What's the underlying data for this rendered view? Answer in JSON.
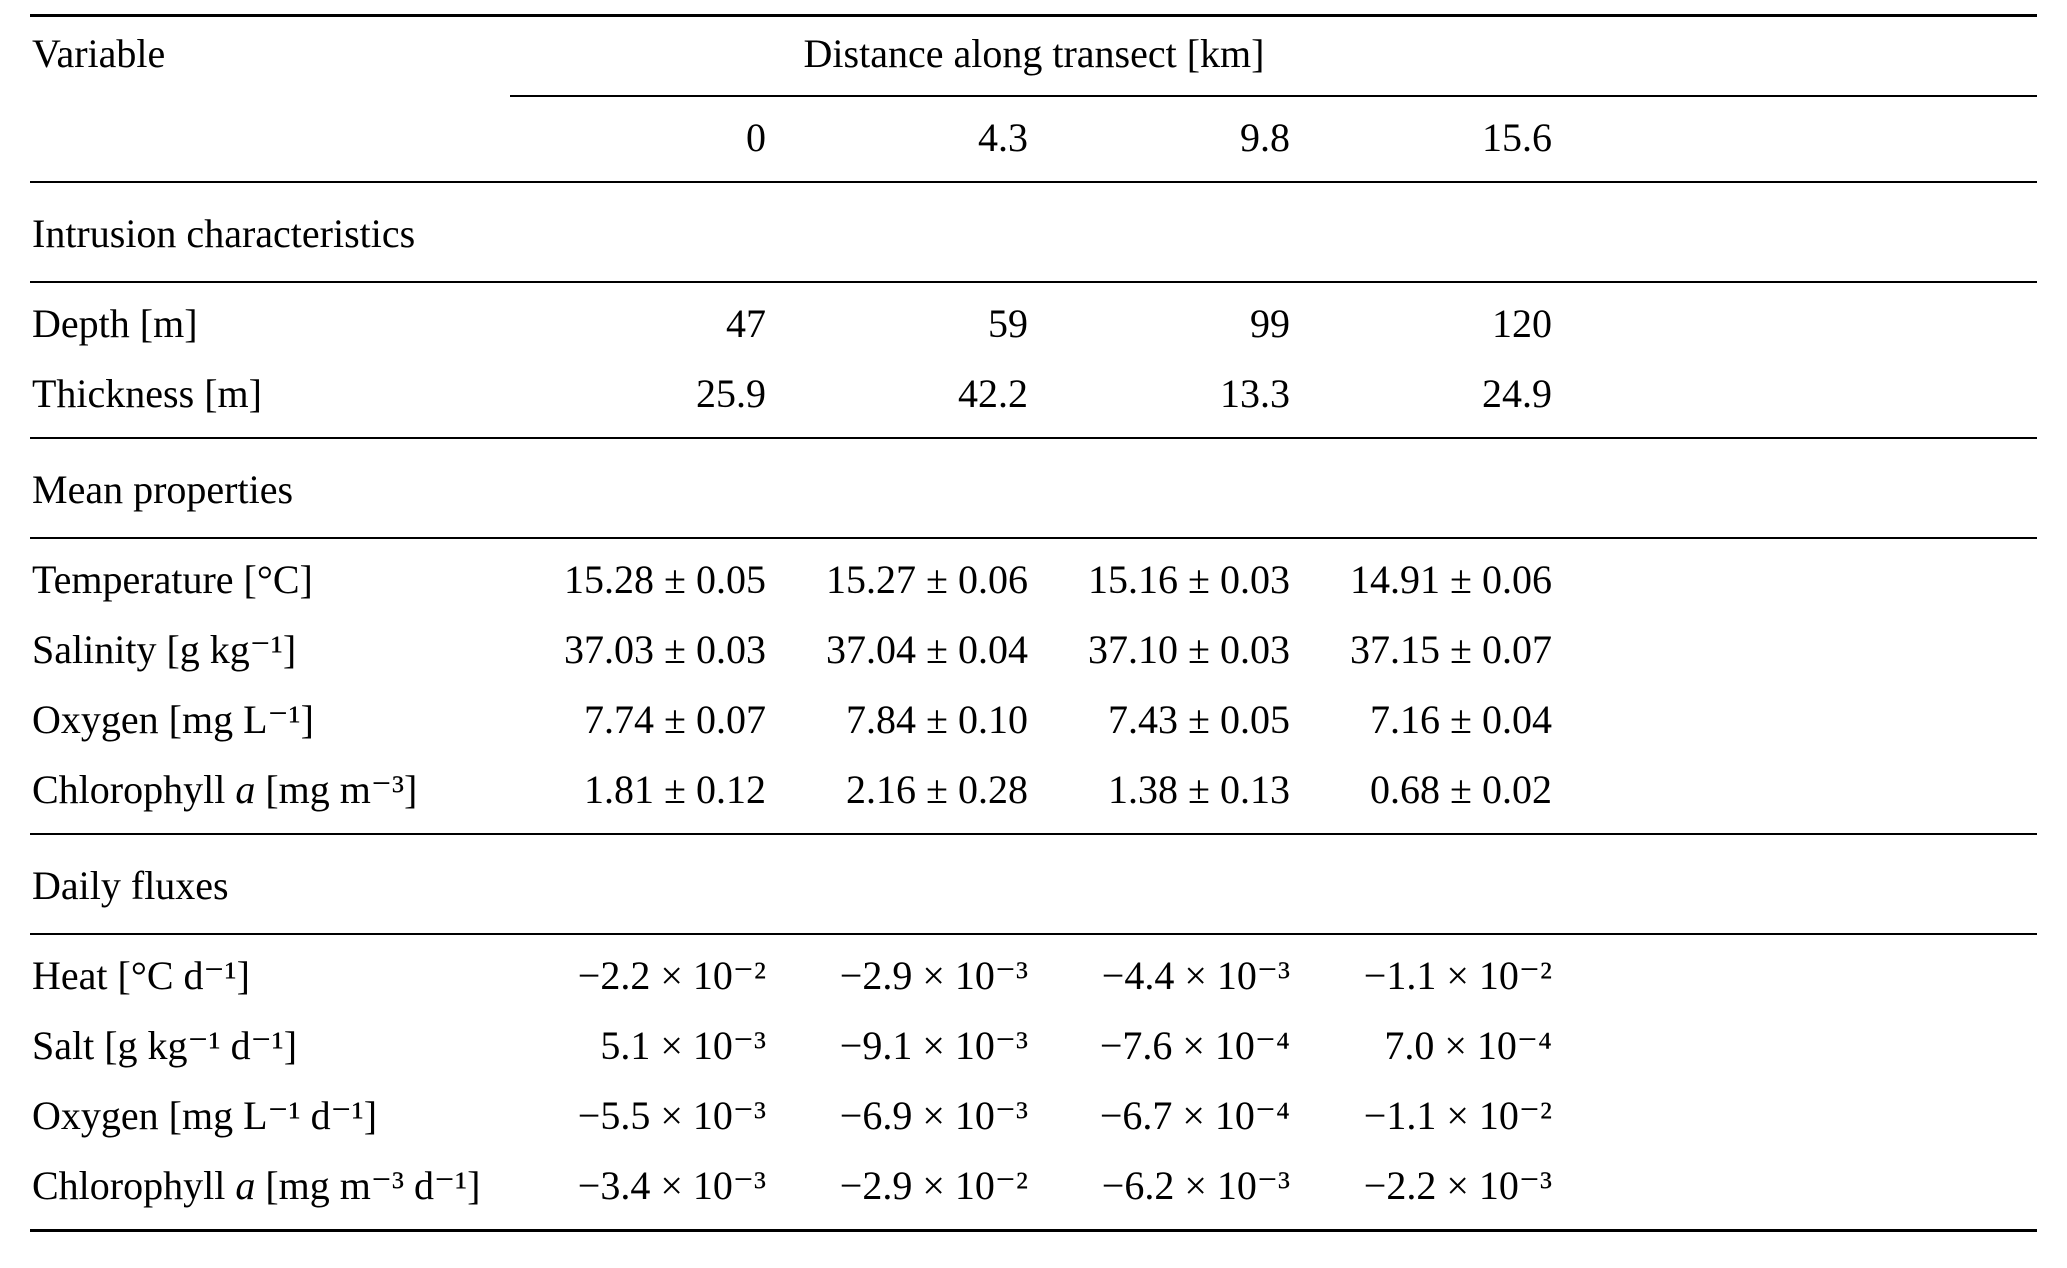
{
  "page": {
    "background": "#ffffff",
    "text_color": "#000000"
  },
  "table": {
    "header": {
      "variable_label": "Variable",
      "group_label": "Distance along transect [km]",
      "columns": [
        "0",
        "4.3",
        "9.8",
        "15.6"
      ]
    },
    "sections": [
      {
        "title": "Intrusion characteristics",
        "rows": [
          {
            "label": "Depth [m]",
            "values": [
              "47",
              "59",
              "99",
              "120"
            ]
          },
          {
            "label": "Thickness [m]",
            "values": [
              "25.9",
              "42.2",
              "13.3",
              "24.9"
            ]
          }
        ]
      },
      {
        "title": "Mean properties",
        "rows": [
          {
            "label": "Temperature [°C]",
            "values": [
              "15.28 ± 0.05",
              "15.27 ± 0.06",
              "15.16 ± 0.03",
              "14.91 ± 0.06"
            ]
          },
          {
            "label": "Salinity [g kg⁻¹]",
            "values": [
              "37.03 ± 0.03",
              "37.04 ± 0.04",
              "37.10 ± 0.03",
              "37.15 ± 0.07"
            ]
          },
          {
            "label": "Oxygen [mg L⁻¹]",
            "values": [
              "7.74 ± 0.07",
              "7.84 ± 0.10",
              "7.43 ± 0.05",
              "7.16 ± 0.04"
            ]
          },
          {
            "label_pre": "Chlorophyll ",
            "label_em": "a",
            "label_post": " [mg m⁻³]",
            "values": [
              "1.81 ± 0.12",
              "2.16 ± 0.28",
              "1.38 ± 0.13",
              "0.68 ± 0.02"
            ]
          }
        ]
      },
      {
        "title": "Daily fluxes",
        "rows": [
          {
            "label": "Heat [°C d⁻¹]",
            "values": [
              "−2.2 × 10⁻²",
              "−2.9 × 10⁻³",
              "−4.4 × 10⁻³",
              "−1.1 × 10⁻²"
            ]
          },
          {
            "label": "Salt [g kg⁻¹ d⁻¹]",
            "values": [
              "5.1 × 10⁻³",
              "−9.1 × 10⁻³",
              "−7.6 × 10⁻⁴",
              "7.0 × 10⁻⁴"
            ]
          },
          {
            "label": "Oxygen [mg L⁻¹ d⁻¹]",
            "values": [
              "−5.5 × 10⁻³",
              "−6.9 × 10⁻³",
              "−6.7 × 10⁻⁴",
              "−1.1 × 10⁻²"
            ]
          },
          {
            "label_pre": "Chlorophyll ",
            "label_em": "a",
            "label_post": " [mg m⁻³ d⁻¹]",
            "values": [
              "−3.4 × 10⁻³",
              "−2.9 × 10⁻²",
              "−6.2 × 10⁻³",
              "−2.2 × 10⁻³"
            ]
          }
        ]
      }
    ]
  }
}
